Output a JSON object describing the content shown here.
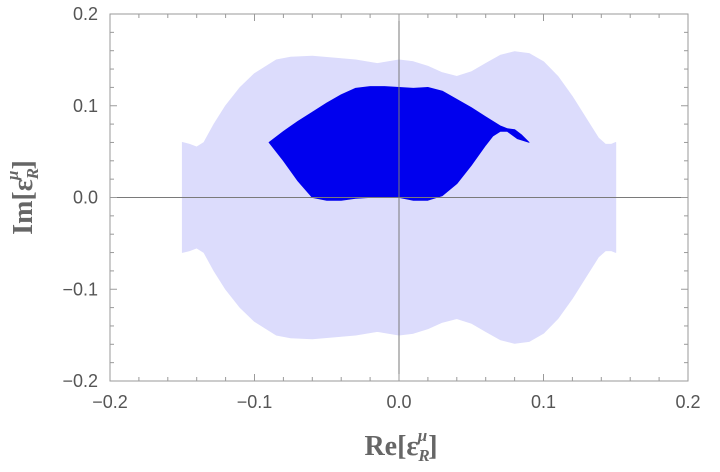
{
  "chart_data": {
    "type": "area",
    "title": "",
    "xlabel": {
      "text": "Re[ε",
      "sub": "R",
      "sup": "μ",
      "close": "]"
    },
    "ylabel": {
      "text": "Im[ε",
      "sub": "R",
      "sup": "μ",
      "close": "]"
    },
    "xlim": [
      -0.2,
      0.2
    ],
    "ylim": [
      -0.2,
      0.2
    ],
    "xticks": [
      -0.2,
      -0.1,
      0.0,
      0.1,
      0.2
    ],
    "yticks": [
      -0.2,
      -0.1,
      0.0,
      0.1,
      0.2
    ],
    "xtick_labels": [
      "−0.2",
      "−0.1",
      "0.0",
      "0.1",
      "0.2"
    ],
    "ytick_labels": [
      "−0.2",
      "−0.1",
      "0.0",
      "0.1",
      "0.2"
    ],
    "grid": false,
    "axes_lines_at_origin": true,
    "series": [
      {
        "color": "#dcdcfc",
        "points": [
          [
            -0.15,
            0.06
          ],
          [
            -0.145,
            0.058
          ],
          [
            -0.14,
            0.055
          ],
          [
            -0.135,
            0.06
          ],
          [
            -0.128,
            0.08
          ],
          [
            -0.12,
            0.1
          ],
          [
            -0.11,
            0.12
          ],
          [
            -0.1,
            0.135
          ],
          [
            -0.09,
            0.145
          ],
          [
            -0.085,
            0.15
          ],
          [
            -0.075,
            0.153
          ],
          [
            -0.06,
            0.154
          ],
          [
            -0.045,
            0.152
          ],
          [
            -0.03,
            0.15
          ],
          [
            -0.015,
            0.146
          ],
          [
            0.0,
            0.15
          ],
          [
            0.01,
            0.148
          ],
          [
            0.02,
            0.143
          ],
          [
            0.03,
            0.136
          ],
          [
            0.04,
            0.132
          ],
          [
            0.05,
            0.137
          ],
          [
            0.06,
            0.146
          ],
          [
            0.07,
            0.155
          ],
          [
            0.08,
            0.159
          ],
          [
            0.09,
            0.157
          ],
          [
            0.1,
            0.148
          ],
          [
            0.11,
            0.132
          ],
          [
            0.12,
            0.11
          ],
          [
            0.13,
            0.085
          ],
          [
            0.138,
            0.065
          ],
          [
            0.143,
            0.058
          ],
          [
            0.147,
            0.058
          ],
          [
            0.15,
            0.06
          ],
          [
            0.15,
            -0.06
          ],
          [
            0.147,
            -0.058
          ],
          [
            0.143,
            -0.058
          ],
          [
            0.138,
            -0.065
          ],
          [
            0.13,
            -0.085
          ],
          [
            0.12,
            -0.11
          ],
          [
            0.11,
            -0.132
          ],
          [
            0.1,
            -0.148
          ],
          [
            0.09,
            -0.157
          ],
          [
            0.08,
            -0.159
          ],
          [
            0.07,
            -0.155
          ],
          [
            0.06,
            -0.146
          ],
          [
            0.05,
            -0.137
          ],
          [
            0.04,
            -0.132
          ],
          [
            0.03,
            -0.136
          ],
          [
            0.02,
            -0.143
          ],
          [
            0.01,
            -0.148
          ],
          [
            0.0,
            -0.15
          ],
          [
            -0.015,
            -0.146
          ],
          [
            -0.03,
            -0.15
          ],
          [
            -0.045,
            -0.152
          ],
          [
            -0.06,
            -0.154
          ],
          [
            -0.075,
            -0.153
          ],
          [
            -0.085,
            -0.15
          ],
          [
            -0.09,
            -0.145
          ],
          [
            -0.1,
            -0.135
          ],
          [
            -0.11,
            -0.12
          ],
          [
            -0.12,
            -0.1
          ],
          [
            -0.128,
            -0.08
          ],
          [
            -0.135,
            -0.06
          ],
          [
            -0.14,
            -0.055
          ],
          [
            -0.145,
            -0.058
          ],
          [
            -0.15,
            -0.06
          ]
        ]
      },
      {
        "color": "#0000ee",
        "points": [
          [
            -0.09,
            0.06
          ],
          [
            -0.08,
            0.072
          ],
          [
            -0.07,
            0.083
          ],
          [
            -0.06,
            0.093
          ],
          [
            -0.05,
            0.103
          ],
          [
            -0.04,
            0.112
          ],
          [
            -0.03,
            0.119
          ],
          [
            -0.02,
            0.121
          ],
          [
            -0.01,
            0.121
          ],
          [
            0.0,
            0.12
          ],
          [
            0.01,
            0.119
          ],
          [
            0.02,
            0.12
          ],
          [
            0.03,
            0.116
          ],
          [
            0.04,
            0.107
          ],
          [
            0.05,
            0.098
          ],
          [
            0.06,
            0.088
          ],
          [
            0.07,
            0.078
          ],
          [
            0.075,
            0.075
          ],
          [
            0.08,
            0.074
          ],
          [
            0.085,
            0.068
          ],
          [
            0.09,
            0.06
          ],
          [
            0.082,
            0.064
          ],
          [
            0.075,
            0.072
          ],
          [
            0.07,
            0.072
          ],
          [
            0.065,
            0.067
          ],
          [
            0.06,
            0.057
          ],
          [
            0.05,
            0.035
          ],
          [
            0.04,
            0.015
          ],
          [
            0.03,
            0.002
          ],
          [
            0.02,
            -0.003
          ],
          [
            0.01,
            -0.003
          ],
          [
            0.0,
            0.0
          ],
          [
            -0.01,
            0.0
          ],
          [
            -0.02,
            0.0
          ],
          [
            -0.03,
            -0.001
          ],
          [
            -0.04,
            -0.003
          ],
          [
            -0.05,
            -0.003
          ],
          [
            -0.06,
            0.0
          ],
          [
            -0.07,
            0.018
          ],
          [
            -0.08,
            0.04
          ],
          [
            -0.09,
            0.06
          ]
        ]
      }
    ]
  }
}
